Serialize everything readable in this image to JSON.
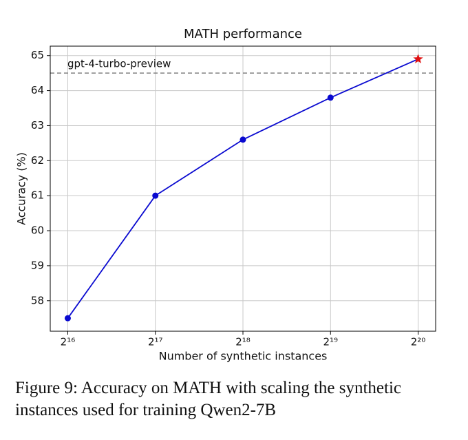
{
  "chart_data": {
    "type": "line",
    "title": "MATH performance",
    "xlabel": "Number of synthetic instances",
    "ylabel": "Accuracy (%)",
    "x": [
      65536,
      131072,
      262144,
      524288,
      1048576
    ],
    "series": [
      {
        "values": [
          57.5,
          61.0,
          62.6,
          63.8,
          64.9
        ],
        "color": "#0a0ad0",
        "point_markers": [
          "circle",
          "circle",
          "circle",
          "circle",
          "star"
        ],
        "point_colors": [
          "#0a0ad0",
          "#0a0ad0",
          "#0a0ad0",
          "#0a0ad0",
          "#e01010"
        ]
      }
    ],
    "xscale": "log",
    "xlog_base": 2,
    "xlim": [
      57052,
      1204498
    ],
    "ylim": [
      57.13,
      65.27
    ],
    "xticks": [
      {
        "value": 65536,
        "label": "2¹⁶"
      },
      {
        "value": 131072,
        "label": "2¹⁷"
      },
      {
        "value": 262144,
        "label": "2¹⁸"
      },
      {
        "value": 524288,
        "label": "2¹⁹"
      },
      {
        "value": 1048576,
        "label": "2²⁰"
      }
    ],
    "yticks": [
      58,
      59,
      60,
      61,
      62,
      63,
      64,
      65
    ],
    "grid": true,
    "hlines": [
      {
        "value": 64.5,
        "label": "gpt-4-turbo-preview",
        "color": "#808080",
        "style": "dashed"
      }
    ]
  },
  "caption": [
    "Figure 9: Accuracy on MATH with scaling the synthetic",
    "instances used for training Qwen2-7B"
  ]
}
